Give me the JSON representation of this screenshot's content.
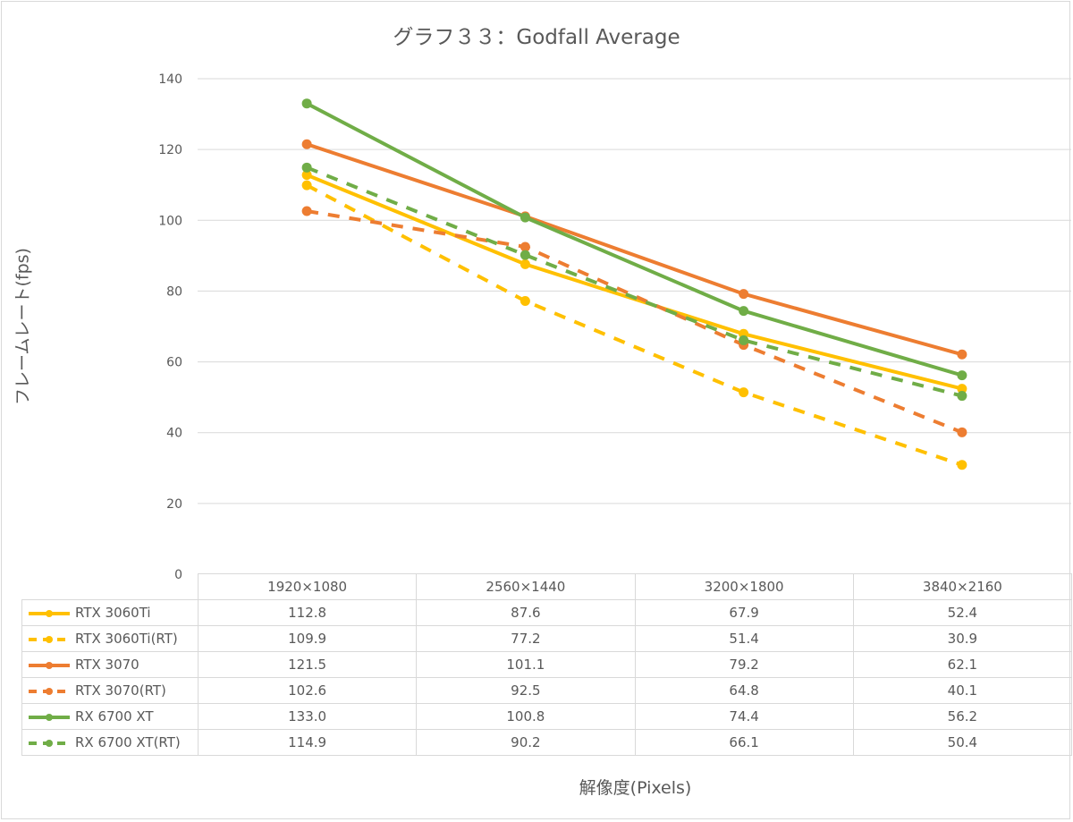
{
  "chart_data": {
    "type": "line",
    "title": "グラフ３３：Godfall Average",
    "xlabel": "解像度(Pixels)",
    "ylabel": "フレームレート(fps)",
    "ylim": [
      0,
      140
    ],
    "yticks": [
      0,
      20,
      40,
      60,
      80,
      100,
      120,
      140
    ],
    "grid": true,
    "legend": "data-table",
    "categories": [
      "1920×1080",
      "2560×1440",
      "3200×1800",
      "3840×2160"
    ],
    "series": [
      {
        "name": "RTX 3060Ti",
        "color": "#FFC000",
        "dash": false,
        "values": [
          112.8,
          87.6,
          67.9,
          52.4
        ],
        "labels": [
          "112.8",
          "87.6",
          "67.9",
          "52.4"
        ]
      },
      {
        "name": "RTX 3060Ti(RT)",
        "color": "#FFC000",
        "dash": true,
        "values": [
          109.9,
          77.2,
          51.4,
          30.9
        ],
        "labels": [
          "109.9",
          "77.2",
          "51.4",
          "30.9"
        ]
      },
      {
        "name": "RTX 3070",
        "color": "#ED7D31",
        "dash": false,
        "values": [
          121.5,
          101.1,
          79.2,
          62.1
        ],
        "labels": [
          "121.5",
          "101.1",
          "79.2",
          "62.1"
        ]
      },
      {
        "name": "RTX 3070(RT)",
        "color": "#ED7D31",
        "dash": true,
        "values": [
          102.6,
          92.5,
          64.8,
          40.1
        ],
        "labels": [
          "102.6",
          "92.5",
          "64.8",
          "40.1"
        ]
      },
      {
        "name": "RX 6700 XT",
        "color": "#70AD47",
        "dash": false,
        "values": [
          133.0,
          100.8,
          74.4,
          56.2
        ],
        "labels": [
          "133.0",
          "100.8",
          "74.4",
          "56.2"
        ]
      },
      {
        "name": "RX 6700 XT(RT)",
        "color": "#70AD47",
        "dash": true,
        "values": [
          114.9,
          90.2,
          66.1,
          50.4
        ],
        "labels": [
          "114.9",
          "90.2",
          "66.1",
          "50.4"
        ]
      }
    ]
  }
}
